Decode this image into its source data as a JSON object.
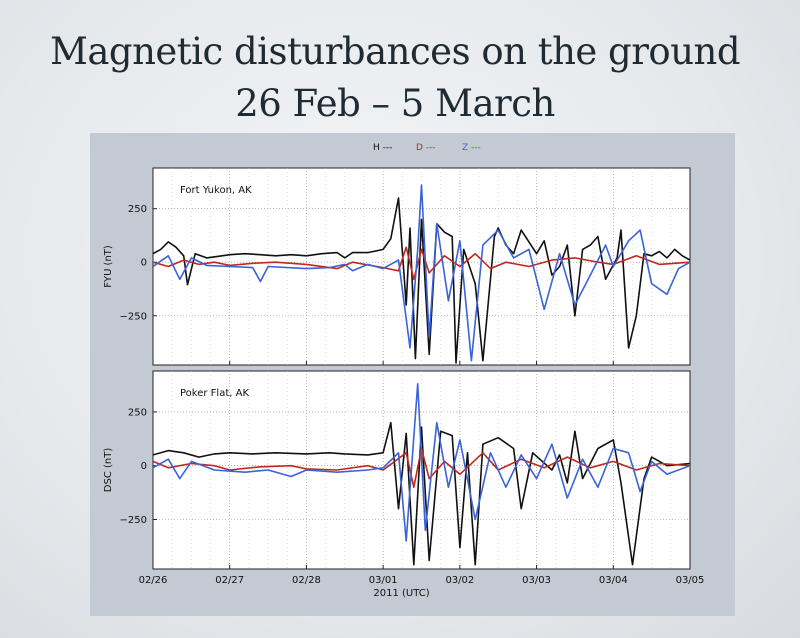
{
  "slide": {
    "title_line_1": "Magnetic disturbances on the ground",
    "title_line_2": "26 Feb – 5 March"
  },
  "colors": {
    "H": "#111111",
    "D": "#c0281e",
    "Z": "#3a63d8",
    "panel_background": "#c3cad4",
    "plot_background": "#ffffff",
    "grid": "#8a8a8a"
  },
  "legend": [
    {
      "label": "H ---",
      "series": "H"
    },
    {
      "label": "D ---",
      "series": "D"
    },
    {
      "label": "Z ---",
      "series": "Z"
    }
  ],
  "chart_data": [
    {
      "type": "line",
      "station": "Fort Yukon, AK",
      "ylabel": "FYU (nT)",
      "xlabel": "2011 (UTC)",
      "x_ticks": [
        "02/26",
        "02/27",
        "02/28",
        "03/01",
        "03/02",
        "03/03",
        "03/04",
        "03/05"
      ],
      "y_ticks": [
        250,
        0,
        -250
      ],
      "y_tick_labels": [
        "250",
        "0",
        "−250"
      ],
      "ylim": [
        -480,
        440
      ],
      "xlim": [
        0,
        7
      ],
      "x_unit": "days since 02/26 00:00 UTC",
      "grid": true,
      "legend_position": "top-center",
      "series": [
        {
          "name": "H",
          "points": [
            [
              0,
              40
            ],
            [
              0.1,
              60
            ],
            [
              0.2,
              95
            ],
            [
              0.3,
              70
            ],
            [
              0.4,
              30
            ],
            [
              0.45,
              -105
            ],
            [
              0.55,
              40
            ],
            [
              0.7,
              20
            ],
            [
              0.9,
              30
            ],
            [
              1.0,
              35
            ],
            [
              1.2,
              40
            ],
            [
              1.4,
              35
            ],
            [
              1.6,
              30
            ],
            [
              1.8,
              35
            ],
            [
              2.0,
              30
            ],
            [
              2.2,
              40
            ],
            [
              2.4,
              45
            ],
            [
              2.5,
              20
            ],
            [
              2.6,
              45
            ],
            [
              2.8,
              45
            ],
            [
              3.0,
              60
            ],
            [
              3.1,
              110
            ],
            [
              3.2,
              300
            ],
            [
              3.3,
              -200
            ],
            [
              3.35,
              160
            ],
            [
              3.42,
              -450
            ],
            [
              3.5,
              200
            ],
            [
              3.6,
              -430
            ],
            [
              3.7,
              180
            ],
            [
              3.8,
              140
            ],
            [
              3.9,
              120
            ],
            [
              3.95,
              -470
            ],
            [
              4.05,
              60
            ],
            [
              4.2,
              -100
            ],
            [
              4.3,
              -460
            ],
            [
              4.45,
              120
            ],
            [
              4.5,
              160
            ],
            [
              4.6,
              80
            ],
            [
              4.7,
              40
            ],
            [
              4.8,
              150
            ],
            [
              5.0,
              40
            ],
            [
              5.1,
              100
            ],
            [
              5.2,
              -60
            ],
            [
              5.3,
              -20
            ],
            [
              5.4,
              80
            ],
            [
              5.5,
              -250
            ],
            [
              5.6,
              60
            ],
            [
              5.7,
              80
            ],
            [
              5.8,
              120
            ],
            [
              5.9,
              -80
            ],
            [
              6.05,
              20
            ],
            [
              6.1,
              150
            ],
            [
              6.2,
              -400
            ],
            [
              6.3,
              -250
            ],
            [
              6.4,
              40
            ],
            [
              6.5,
              30
            ],
            [
              6.6,
              50
            ],
            [
              6.7,
              20
            ],
            [
              6.8,
              60
            ],
            [
              6.9,
              30
            ],
            [
              7,
              10
            ]
          ]
        },
        {
          "name": "D",
          "points": [
            [
              0,
              0
            ],
            [
              0.2,
              -20
            ],
            [
              0.4,
              10
            ],
            [
              0.6,
              -10
            ],
            [
              0.8,
              0
            ],
            [
              1.0,
              -15
            ],
            [
              1.3,
              -5
            ],
            [
              1.6,
              0
            ],
            [
              2.0,
              -10
            ],
            [
              2.4,
              -30
            ],
            [
              2.6,
              0
            ],
            [
              3.0,
              -25
            ],
            [
              3.2,
              -40
            ],
            [
              3.3,
              70
            ],
            [
              3.4,
              -80
            ],
            [
              3.5,
              60
            ],
            [
              3.6,
              -50
            ],
            [
              3.8,
              30
            ],
            [
              4.0,
              -20
            ],
            [
              4.2,
              40
            ],
            [
              4.4,
              -30
            ],
            [
              4.6,
              0
            ],
            [
              4.9,
              -20
            ],
            [
              5.2,
              10
            ],
            [
              5.5,
              20
            ],
            [
              5.8,
              0
            ],
            [
              6.0,
              -10
            ],
            [
              6.3,
              30
            ],
            [
              6.6,
              -10
            ],
            [
              7,
              0
            ]
          ]
        },
        {
          "name": "Z",
          "points": [
            [
              0,
              -20
            ],
            [
              0.2,
              30
            ],
            [
              0.35,
              -80
            ],
            [
              0.5,
              20
            ],
            [
              0.7,
              -15
            ],
            [
              1.0,
              -20
            ],
            [
              1.3,
              -25
            ],
            [
              1.4,
              -90
            ],
            [
              1.5,
              -20
            ],
            [
              2.0,
              -30
            ],
            [
              2.3,
              -25
            ],
            [
              2.5,
              -10
            ],
            [
              2.6,
              -40
            ],
            [
              2.8,
              -10
            ],
            [
              3.0,
              -30
            ],
            [
              3.2,
              10
            ],
            [
              3.35,
              -400
            ],
            [
              3.45,
              60
            ],
            [
              3.5,
              360
            ],
            [
              3.6,
              -350
            ],
            [
              3.7,
              180
            ],
            [
              3.85,
              -180
            ],
            [
              4.0,
              100
            ],
            [
              4.15,
              -460
            ],
            [
              4.3,
              80
            ],
            [
              4.5,
              150
            ],
            [
              4.7,
              20
            ],
            [
              4.9,
              60
            ],
            [
              5.0,
              -80
            ],
            [
              5.1,
              -220
            ],
            [
              5.3,
              40
            ],
            [
              5.5,
              -200
            ],
            [
              5.7,
              -60
            ],
            [
              5.9,
              80
            ],
            [
              6.0,
              -20
            ],
            [
              6.2,
              100
            ],
            [
              6.35,
              150
            ],
            [
              6.5,
              -100
            ],
            [
              6.7,
              -150
            ],
            [
              6.85,
              -30
            ],
            [
              7,
              0
            ]
          ]
        }
      ]
    },
    {
      "type": "line",
      "station": "Poker Flat, AK",
      "ylabel": "DSC (nT)",
      "xlabel": "2011 (UTC)",
      "x_ticks": [
        "02/26",
        "02/27",
        "02/28",
        "03/01",
        "03/02",
        "03/03",
        "03/04",
        "03/05"
      ],
      "y_ticks": [
        250,
        0,
        -250
      ],
      "y_tick_labels": [
        "250",
        "0",
        "−250"
      ],
      "ylim": [
        -480,
        440
      ],
      "xlim": [
        0,
        7
      ],
      "x_unit": "days since 02/26 00:00 UTC",
      "grid": true,
      "legend_position": "top-center",
      "series": [
        {
          "name": "H",
          "points": [
            [
              0,
              50
            ],
            [
              0.2,
              70
            ],
            [
              0.4,
              60
            ],
            [
              0.6,
              40
            ],
            [
              0.8,
              55
            ],
            [
              1.0,
              60
            ],
            [
              1.3,
              55
            ],
            [
              1.6,
              60
            ],
            [
              2.0,
              55
            ],
            [
              2.3,
              60
            ],
            [
              2.5,
              55
            ],
            [
              2.8,
              50
            ],
            [
              3.0,
              60
            ],
            [
              3.1,
              200
            ],
            [
              3.2,
              -200
            ],
            [
              3.3,
              150
            ],
            [
              3.4,
              -460
            ],
            [
              3.5,
              180
            ],
            [
              3.6,
              -440
            ],
            [
              3.75,
              160
            ],
            [
              3.9,
              140
            ],
            [
              4.0,
              -380
            ],
            [
              4.1,
              60
            ],
            [
              4.2,
              -460
            ],
            [
              4.3,
              100
            ],
            [
              4.5,
              130
            ],
            [
              4.7,
              80
            ],
            [
              4.8,
              -200
            ],
            [
              4.95,
              60
            ],
            [
              5.2,
              -20
            ],
            [
              5.3,
              50
            ],
            [
              5.4,
              -80
            ],
            [
              5.5,
              160
            ],
            [
              5.6,
              -60
            ],
            [
              5.8,
              80
            ],
            [
              6.0,
              120
            ],
            [
              6.1,
              -80
            ],
            [
              6.25,
              -460
            ],
            [
              6.4,
              -60
            ],
            [
              6.5,
              40
            ],
            [
              6.7,
              0
            ],
            [
              7,
              10
            ]
          ]
        },
        {
          "name": "D",
          "points": [
            [
              0,
              20
            ],
            [
              0.2,
              -10
            ],
            [
              0.5,
              10
            ],
            [
              0.8,
              0
            ],
            [
              1.0,
              -20
            ],
            [
              1.4,
              -5
            ],
            [
              1.8,
              0
            ],
            [
              2.0,
              -15
            ],
            [
              2.4,
              -20
            ],
            [
              2.8,
              0
            ],
            [
              3.0,
              -20
            ],
            [
              3.3,
              60
            ],
            [
              3.4,
              -100
            ],
            [
              3.5,
              80
            ],
            [
              3.6,
              -60
            ],
            [
              3.8,
              20
            ],
            [
              4.0,
              -40
            ],
            [
              4.3,
              60
            ],
            [
              4.5,
              -20
            ],
            [
              4.8,
              30
            ],
            [
              5.1,
              -10
            ],
            [
              5.4,
              40
            ],
            [
              5.7,
              -10
            ],
            [
              6.0,
              20
            ],
            [
              6.3,
              -20
            ],
            [
              6.6,
              10
            ],
            [
              7,
              0
            ]
          ]
        },
        {
          "name": "Z",
          "points": [
            [
              0,
              -10
            ],
            [
              0.2,
              30
            ],
            [
              0.35,
              -60
            ],
            [
              0.5,
              20
            ],
            [
              0.8,
              -20
            ],
            [
              1.2,
              -30
            ],
            [
              1.5,
              -20
            ],
            [
              1.8,
              -50
            ],
            [
              2.0,
              -20
            ],
            [
              2.4,
              -30
            ],
            [
              2.8,
              -20
            ],
            [
              3.0,
              -10
            ],
            [
              3.2,
              60
            ],
            [
              3.3,
              -350
            ],
            [
              3.45,
              380
            ],
            [
              3.55,
              -300
            ],
            [
              3.7,
              200
            ],
            [
              3.85,
              -100
            ],
            [
              4.0,
              120
            ],
            [
              4.2,
              -250
            ],
            [
              4.4,
              60
            ],
            [
              4.6,
              -100
            ],
            [
              4.8,
              50
            ],
            [
              5.0,
              -60
            ],
            [
              5.2,
              100
            ],
            [
              5.4,
              -150
            ],
            [
              5.6,
              30
            ],
            [
              5.8,
              -100
            ],
            [
              6.0,
              80
            ],
            [
              6.2,
              60
            ],
            [
              6.35,
              -120
            ],
            [
              6.5,
              20
            ],
            [
              6.7,
              -40
            ],
            [
              7,
              0
            ]
          ]
        }
      ]
    }
  ]
}
